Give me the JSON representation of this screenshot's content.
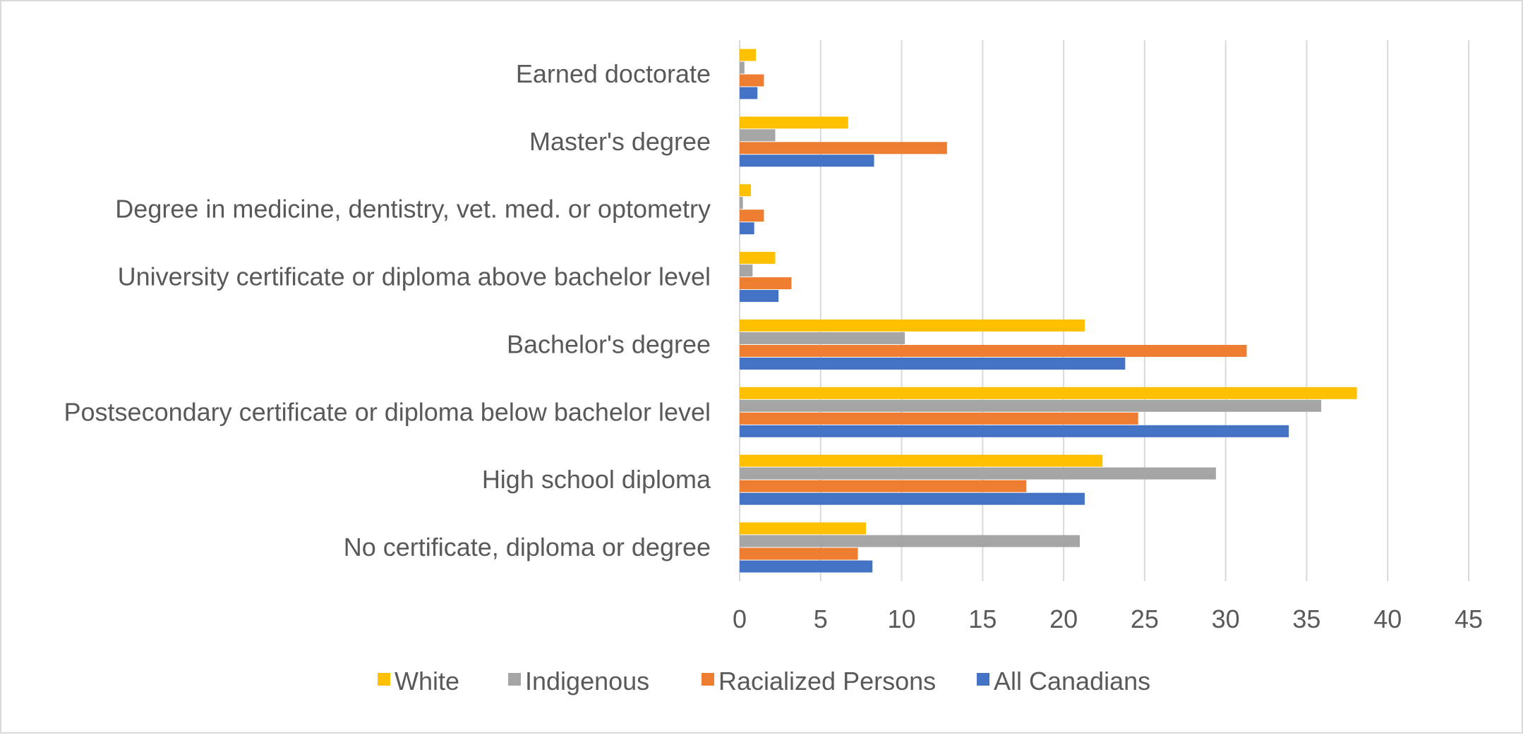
{
  "chart_data": {
    "type": "bar",
    "orientation": "horizontal",
    "categories": [
      "No certificate, diploma or degree",
      "High school diploma",
      "Postsecondary certificate or diploma below bachelor level",
      "Bachelor's degree",
      "University certificate or diploma above bachelor level",
      "Degree in medicine, dentistry, vet. med. or optometry",
      "Master's degree",
      "Earned doctorate"
    ],
    "series": [
      {
        "name": "All Canadians",
        "color": "#4472c4",
        "values": [
          8.2,
          21.3,
          33.9,
          23.8,
          2.4,
          0.9,
          8.3,
          1.1
        ]
      },
      {
        "name": "Racialized Persons",
        "color": "#ed7d31",
        "values": [
          7.3,
          17.7,
          24.6,
          31.3,
          3.2,
          1.5,
          12.8,
          1.5
        ]
      },
      {
        "name": "Indigenous",
        "color": "#a5a5a5",
        "values": [
          21.0,
          29.4,
          35.9,
          10.2,
          0.8,
          0.2,
          2.2,
          0.3
        ]
      },
      {
        "name": "White",
        "color": "#ffc000",
        "values": [
          7.8,
          22.4,
          38.1,
          21.3,
          2.2,
          0.7,
          6.7,
          1.0
        ]
      }
    ],
    "legend_order": [
      "White",
      "Indigenous",
      "Racialized Persons",
      "All Canadians"
    ],
    "legend_position": "bottom",
    "xlim": [
      0,
      45
    ],
    "xticks": [
      "0",
      "5",
      "10",
      "15",
      "20",
      "25",
      "30",
      "35",
      "40",
      "45"
    ],
    "grid": true,
    "title": "",
    "xlabel": "",
    "ylabel": ""
  }
}
